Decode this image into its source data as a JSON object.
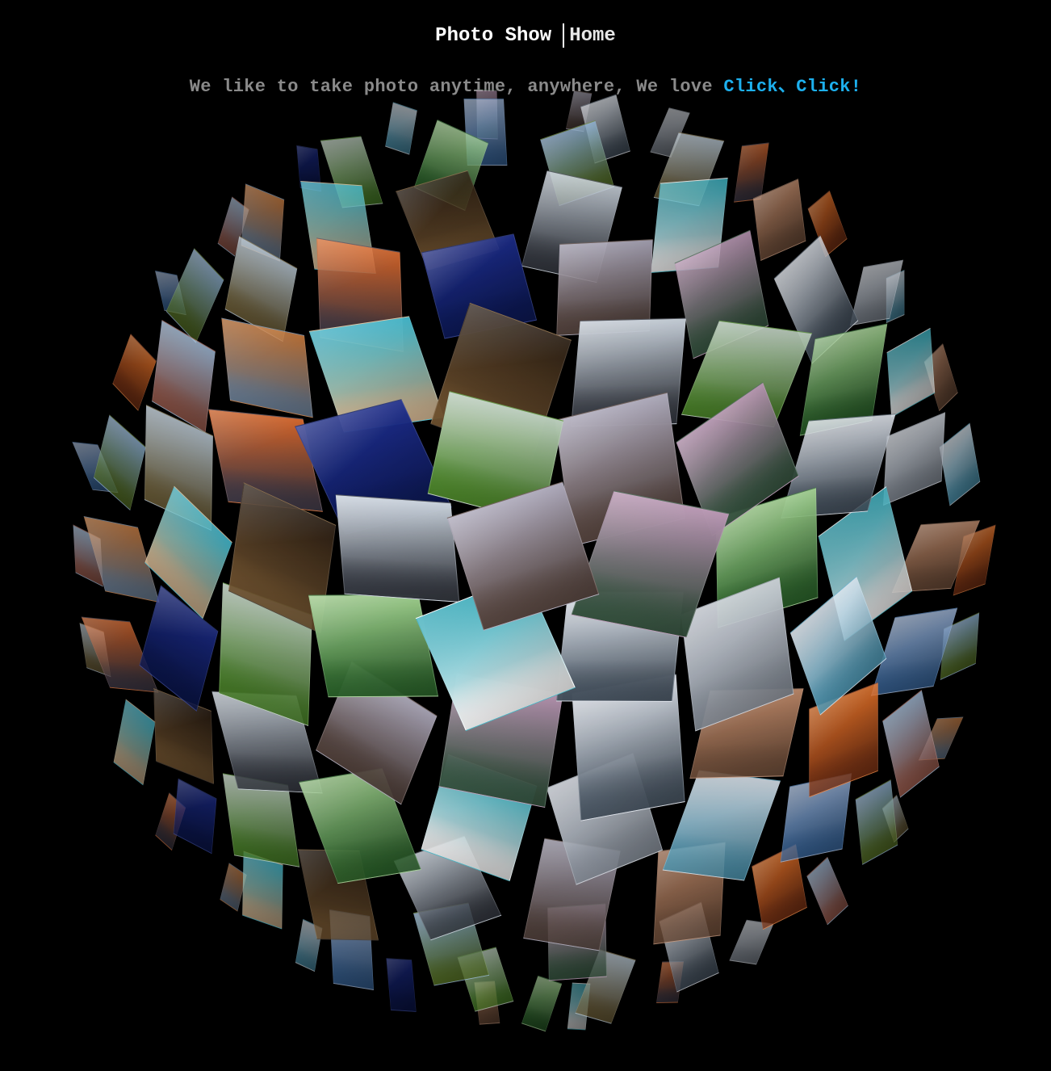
{
  "header": {
    "brand": "Photo Show",
    "home_link": "Home"
  },
  "tagline": {
    "text": "We like to take photo anytime, anywhere, We love ",
    "accent": "Click、Click!"
  },
  "colors": {
    "background": "#000000",
    "title": "#ffffff",
    "tagline": "#8a8a8a",
    "accent": "#1db0ee"
  },
  "gallery": {
    "photos": [
      {
        "name": "tornado-sky",
        "top": "#c9d2dc",
        "bottom": "#3b3f48"
      },
      {
        "name": "mountain-valley",
        "top": "#a7a3b5",
        "bottom": "#5c4a44"
      },
      {
        "name": "blossom-park",
        "top": "#b48fae",
        "bottom": "#3b5a45"
      },
      {
        "name": "fjord-reflection",
        "top": "#dde2ea",
        "bottom": "#4d5a68"
      },
      {
        "name": "polar-bear",
        "top": "#c9ced6",
        "bottom": "#8e96a1"
      },
      {
        "name": "hot-spring",
        "top": "#d9e4ee",
        "bottom": "#58a6c4"
      },
      {
        "name": "santorini-coast",
        "top": "#9ab2d6",
        "bottom": "#3f6fa8"
      },
      {
        "name": "wheat-field",
        "top": "#8fb4d8",
        "bottom": "#5e7b2b"
      },
      {
        "name": "lighthouse-cliff",
        "top": "#b7c7d4",
        "bottom": "#7a6a40"
      },
      {
        "name": "sunset-rocks",
        "top": "#e36a2a",
        "bottom": "#4a4250"
      },
      {
        "name": "night-lake",
        "top": "#1c2c8a",
        "bottom": "#0e1b5c"
      },
      {
        "name": "green-meadow",
        "top": "#b6c9b8",
        "bottom": "#4f8a2c"
      },
      {
        "name": "pink-bridge-forest",
        "top": "#9fcf8d",
        "bottom": "#2f6a2e"
      },
      {
        "name": "lagoon-aerial",
        "top": "#2fa8b8",
        "bottom": "#ffffff"
      },
      {
        "name": "red-rock-canyon",
        "top": "#c08a6a",
        "bottom": "#7a5640"
      },
      {
        "name": "ocean-sunset",
        "top": "#f0782a",
        "bottom": "#8a3a18"
      },
      {
        "name": "flower-garden",
        "top": "#a8c5e6",
        "bottom": "#b16a5a"
      },
      {
        "name": "autumn-lake",
        "top": "#cc7a3a",
        "bottom": "#7a8fa8"
      },
      {
        "name": "palm-beach",
        "top": "#3dbad0",
        "bottom": "#e7c8a0"
      },
      {
        "name": "desert-dunes",
        "top": "#2a1d12",
        "bottom": "#7a5a34"
      }
    ]
  }
}
